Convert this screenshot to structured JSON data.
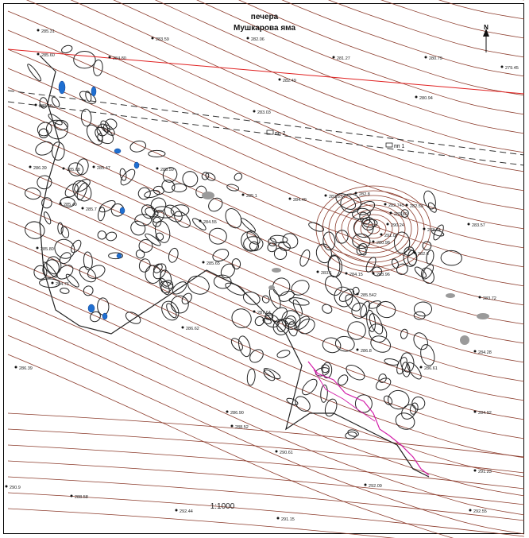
{
  "map": {
    "title_line1": "печера",
    "title_line2": "Мушкарова яма",
    "scale": "1:1000",
    "north_label": "N",
    "colors": {
      "contour": "#8b3a2a",
      "cave_outline": "#222222",
      "water": "#1f6fd1",
      "survey_path": "#d21ea8",
      "red_line": "#e02020",
      "dashed_line": "#333333",
      "shade": "#9a9a9a"
    },
    "markers": [
      {
        "id": "pp2",
        "label": "пп 2"
      },
      {
        "id": "pp1",
        "label": "пп 1"
      }
    ],
    "elevations": [
      "285.31",
      "283.59",
      "282.06",
      "281.27",
      "280.79",
      "279.45",
      "285.60",
      "284.80",
      "282.49",
      "280.94",
      "283.03",
      "283.60",
      "286.39",
      "285.68",
      "285.47",
      "285.59",
      "285.1",
      "284.49",
      "282.67",
      "282.8",
      "282.745",
      "281.80",
      "282.53",
      "283.57",
      "285.49",
      "285.7",
      "284.55",
      "283.74",
      "282.6",
      "280.98",
      "285.80",
      "285.65",
      "283.1",
      "283.96",
      "284.76",
      "284.15",
      "285.542",
      "286.62",
      "287.64",
      "283.72",
      "284.28",
      "286.39",
      "286.8",
      "286.61",
      "284.92",
      "286.90",
      "288.52",
      "290.61",
      "291.23",
      "290.9",
      "288.58",
      "292.09",
      "292.44",
      "291.15",
      "292.55",
      "291.07",
      "290.24"
    ]
  }
}
